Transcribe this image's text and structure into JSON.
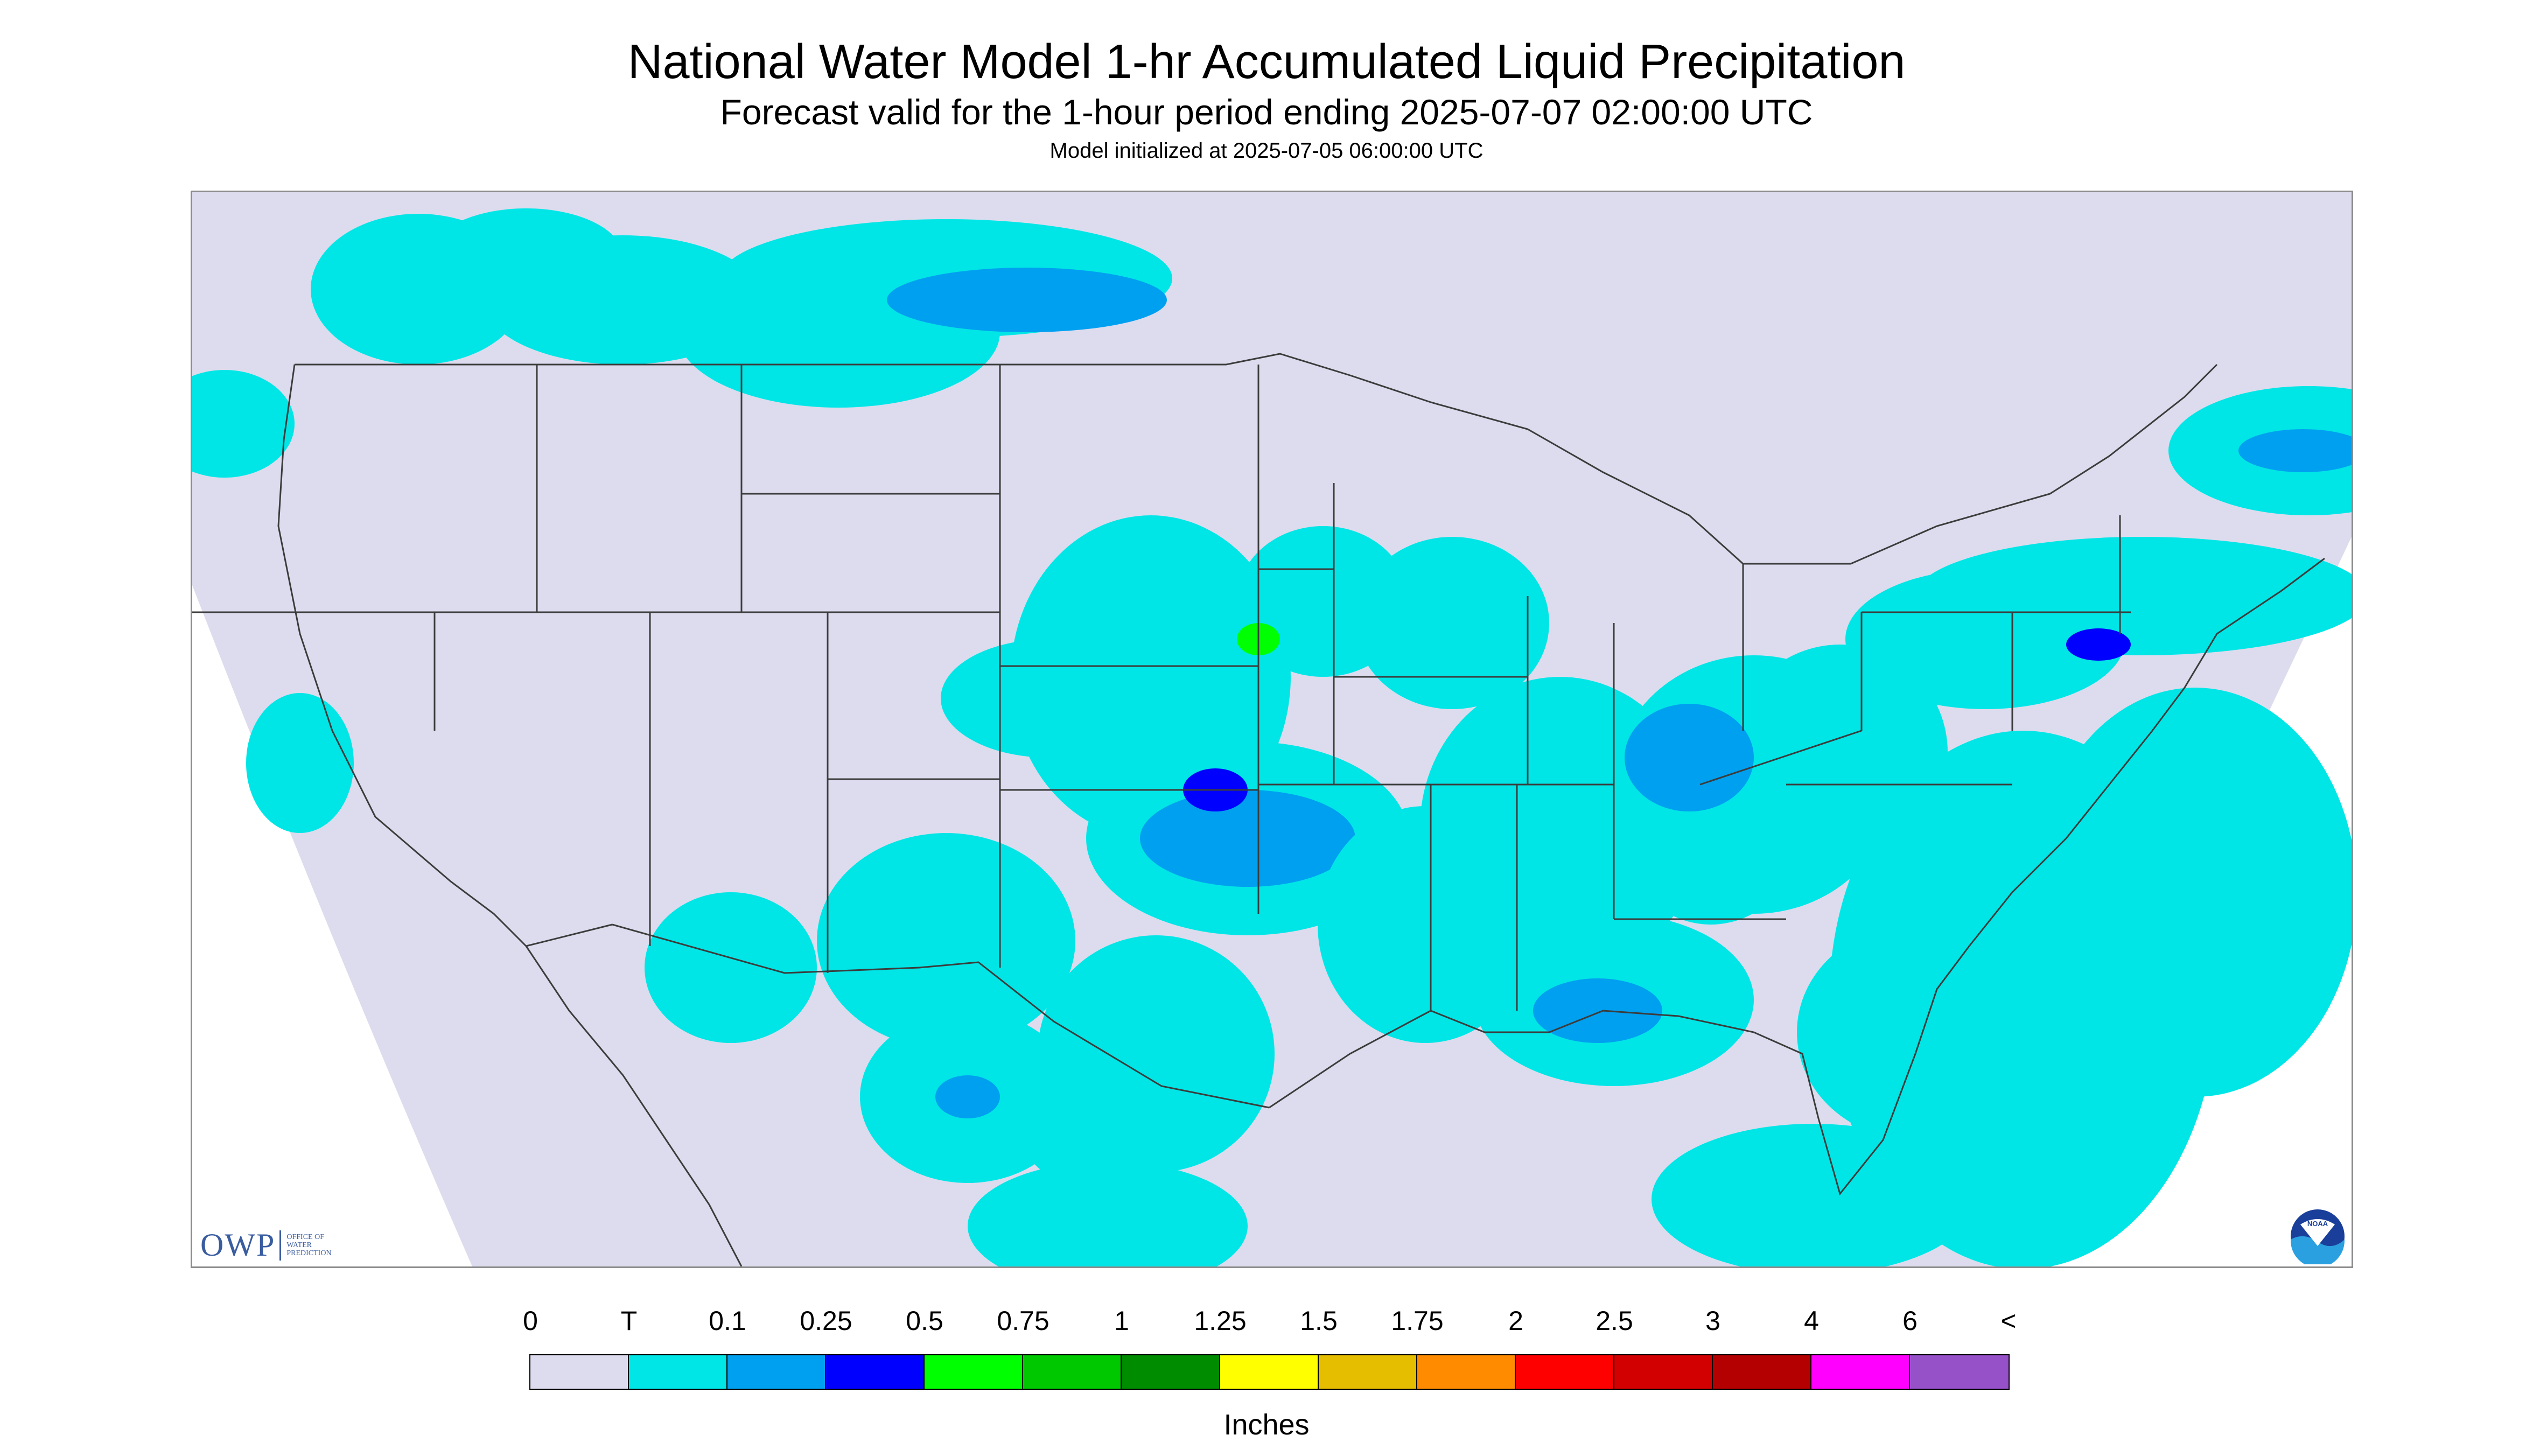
{
  "header": {
    "title": "National Water Model 1-hr Accumulated Liquid Precipitation",
    "subtitle": "Forecast valid for the 1-hour period ending 2025-07-07 02:00:00 UTC",
    "init": "Model initialized at 2025-07-05 06:00:00 UTC"
  },
  "logos": {
    "owp_text": "OWP",
    "owp_sub": [
      "OFFICE OF",
      "WATER",
      "PREDICTION"
    ],
    "noaa_text": "NOAA"
  },
  "legend": {
    "labels": [
      "0",
      "T",
      "0.1",
      "0.25",
      "0.5",
      "0.75",
      "1",
      "1.25",
      "1.5",
      "1.75",
      "2",
      "2.5",
      "3",
      "4",
      "6",
      "<"
    ],
    "colors": [
      "#dcdcee",
      "#00e6e6",
      "#00a0f0",
      "#0000ff",
      "#00ff00",
      "#00c800",
      "#008c00",
      "#ffff00",
      "#e6be00",
      "#ff8c00",
      "#ff0000",
      "#d20000",
      "#b40000",
      "#ff00ff",
      "#9650c8"
    ],
    "units": "Inches"
  },
  "map": {
    "background_color": "#dcdcee",
    "outside_color": "#ffffff",
    "border_color": "#3c3c3c",
    "precip_colors": {
      "trace": "#00e6e6",
      "light": "#00a0f0",
      "moderate": "#0000ff",
      "heavy": "#00ff00"
    }
  }
}
